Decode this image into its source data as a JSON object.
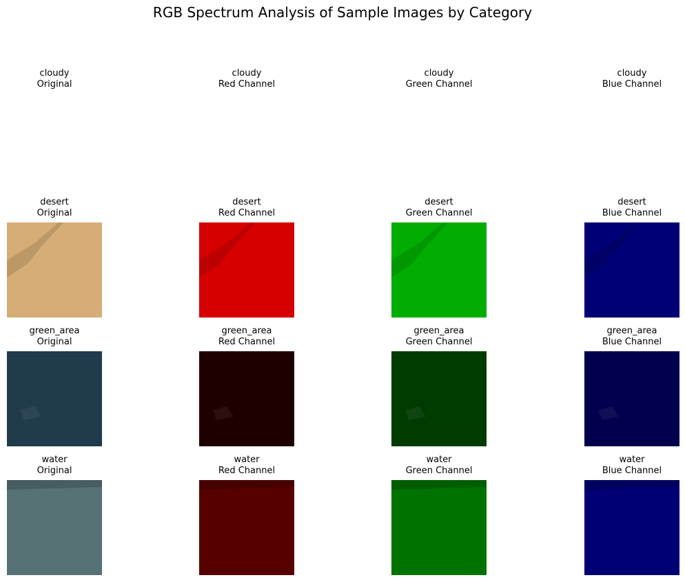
{
  "chart_data": {
    "type": "image-grid",
    "title": "RGB Spectrum Analysis of Sample Images by Category",
    "rows": [
      {
        "category": "cloudy",
        "has_image": false,
        "panels": [
          {
            "line1": "cloudy",
            "line2": "Original"
          },
          {
            "line1": "cloudy",
            "line2": "Red Channel"
          },
          {
            "line1": "cloudy",
            "line2": "Green Channel"
          },
          {
            "line1": "cloudy",
            "line2": "Blue Channel"
          }
        ]
      },
      {
        "category": "desert",
        "has_image": true,
        "original_color": "#d6ad76",
        "panels": [
          {
            "line1": "desert",
            "line2": "Original"
          },
          {
            "line1": "desert",
            "line2": "Red Channel"
          },
          {
            "line1": "desert",
            "line2": "Green Channel"
          },
          {
            "line1": "desert",
            "line2": "Blue Channel"
          }
        ]
      },
      {
        "category": "green_area",
        "has_image": true,
        "original_color": "#1f3b4c",
        "panels": [
          {
            "line1": "green_area",
            "line2": "Original"
          },
          {
            "line1": "green_area",
            "line2": "Red Channel"
          },
          {
            "line1": "green_area",
            "line2": "Green Channel"
          },
          {
            "line1": "green_area",
            "line2": "Blue Channel"
          }
        ]
      },
      {
        "category": "water",
        "has_image": true,
        "original_color": "#577274",
        "panels": [
          {
            "line1": "water",
            "line2": "Original"
          },
          {
            "line1": "water",
            "line2": "Red Channel"
          },
          {
            "line1": "water",
            "line2": "Green Channel"
          },
          {
            "line1": "water",
            "line2": "Blue Channel"
          }
        ]
      }
    ]
  }
}
